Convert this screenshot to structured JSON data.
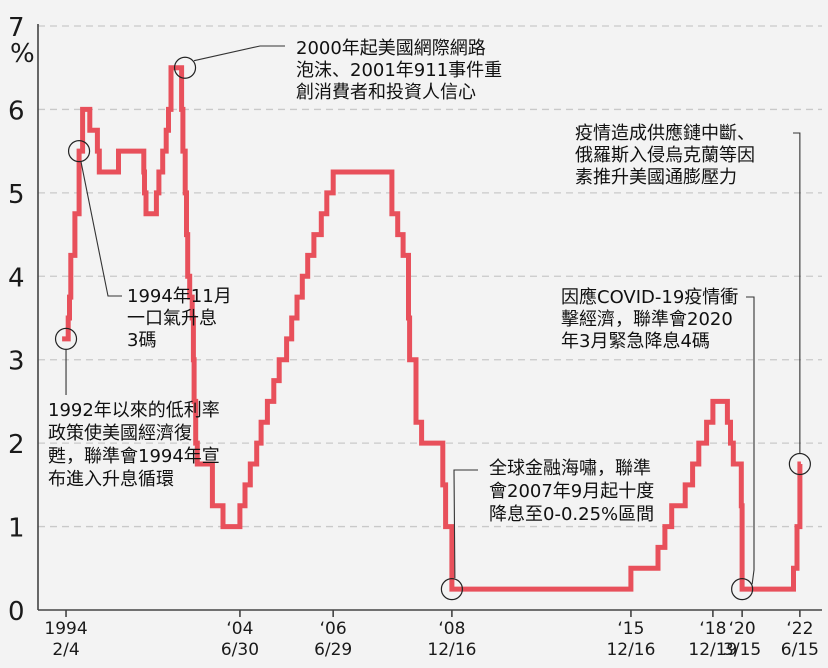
{
  "chart_data": {
    "type": "line",
    "y_unit": "%",
    "ylim": [
      0,
      7
    ],
    "y_ticks": [
      "0",
      "1",
      "2",
      "3",
      "4",
      "5",
      "6",
      "7"
    ],
    "grid": "horizontal dashed",
    "line_color": "#e8505b",
    "x_ticks": [
      {
        "x": "1994-02-04",
        "line1": "1994",
        "line2": "2/4"
      },
      {
        "x": "2004-06-30",
        "line1": "‘04",
        "line2": "6/30"
      },
      {
        "x": "2006-06-29",
        "line1": "‘06",
        "line2": "6/29"
      },
      {
        "x": "2008-12-16",
        "line1": "‘08",
        "line2": "12/16"
      },
      {
        "x": "2015-12-16",
        "line1": "‘15",
        "line2": "12/16"
      },
      {
        "x": "2018-12-19",
        "line1": "‘18",
        "line2": "12/19"
      },
      {
        "x": "2020-03-15",
        "line1": "‘20",
        "line2": "3/15"
      },
      {
        "x": "2022-06-15",
        "line1": "‘22",
        "line2": "6/15"
      }
    ],
    "series": [
      {
        "values": [
          [
            "1993-12-01",
            3.25
          ],
          [
            "1994-02-04",
            3.25
          ],
          [
            "1994-03-22",
            3.5
          ],
          [
            "1994-04-18",
            3.75
          ],
          [
            "1994-05-17",
            4.25
          ],
          [
            "1994-08-16",
            4.75
          ],
          [
            "1994-11-15",
            5.5
          ],
          [
            "1995-02-01",
            6.0
          ],
          [
            "1995-07-06",
            5.75
          ],
          [
            "1995-12-19",
            5.5
          ],
          [
            "1996-01-31",
            5.25
          ],
          [
            "1997-03-25",
            5.5
          ],
          [
            "1998-09-29",
            5.25
          ],
          [
            "1998-10-15",
            5.0
          ],
          [
            "1998-11-17",
            4.75
          ],
          [
            "1999-06-30",
            5.0
          ],
          [
            "1999-08-24",
            5.25
          ],
          [
            "1999-11-16",
            5.5
          ],
          [
            "2000-02-02",
            5.75
          ],
          [
            "2000-03-21",
            6.0
          ],
          [
            "2000-05-16",
            6.5
          ],
          [
            "2001-01-03",
            6.0
          ],
          [
            "2001-01-31",
            5.5
          ],
          [
            "2001-03-20",
            5.0
          ],
          [
            "2001-04-18",
            4.5
          ],
          [
            "2001-05-15",
            4.0
          ],
          [
            "2001-06-27",
            3.75
          ],
          [
            "2001-08-21",
            3.5
          ],
          [
            "2001-09-17",
            3.0
          ],
          [
            "2001-10-02",
            2.5
          ],
          [
            "2001-11-06",
            2.0
          ],
          [
            "2001-12-11",
            1.75
          ],
          [
            "2002-11-06",
            1.25
          ],
          [
            "2003-06-25",
            1.0
          ],
          [
            "2004-06-30",
            1.25
          ],
          [
            "2004-08-10",
            1.5
          ],
          [
            "2004-09-21",
            1.75
          ],
          [
            "2004-11-10",
            2.0
          ],
          [
            "2004-12-14",
            2.25
          ],
          [
            "2005-02-02",
            2.5
          ],
          [
            "2005-03-22",
            2.75
          ],
          [
            "2005-05-03",
            3.0
          ],
          [
            "2005-06-30",
            3.25
          ],
          [
            "2005-08-09",
            3.5
          ],
          [
            "2005-09-20",
            3.75
          ],
          [
            "2005-11-01",
            4.0
          ],
          [
            "2005-12-13",
            4.25
          ],
          [
            "2006-01-31",
            4.5
          ],
          [
            "2006-03-28",
            4.75
          ],
          [
            "2006-05-10",
            5.0
          ],
          [
            "2006-06-29",
            5.25
          ],
          [
            "2007-09-18",
            4.75
          ],
          [
            "2007-10-31",
            4.5
          ],
          [
            "2007-12-11",
            4.25
          ],
          [
            "2008-01-22",
            3.5
          ],
          [
            "2008-01-30",
            3.0
          ],
          [
            "2008-03-18",
            2.25
          ],
          [
            "2008-04-30",
            2.0
          ],
          [
            "2008-10-08",
            1.5
          ],
          [
            "2008-10-29",
            1.0
          ],
          [
            "2008-12-16",
            0.25
          ],
          [
            "2015-12-16",
            0.5
          ],
          [
            "2016-12-14",
            0.75
          ],
          [
            "2017-03-15",
            1.0
          ],
          [
            "2017-06-14",
            1.25
          ],
          [
            "2017-12-13",
            1.5
          ],
          [
            "2018-03-21",
            1.75
          ],
          [
            "2018-06-13",
            2.0
          ],
          [
            "2018-09-26",
            2.25
          ],
          [
            "2018-12-19",
            2.5
          ],
          [
            "2019-07-31",
            2.25
          ],
          [
            "2019-09-18",
            2.0
          ],
          [
            "2019-10-30",
            1.75
          ],
          [
            "2020-03-03",
            1.25
          ],
          [
            "2020-03-15",
            0.25
          ],
          [
            "2022-03-16",
            0.5
          ],
          [
            "2022-05-04",
            1.0
          ],
          [
            "2022-06-15",
            1.75
          ]
        ]
      }
    ],
    "annotations": [
      {
        "key": "a1992",
        "lines": [
          "1992年以來的低利率",
          "政策使美國經濟復",
          "甦，聯準會1994年宣",
          "布進入升息循環"
        ]
      },
      {
        "key": "a1994",
        "lines": [
          "1994年11月",
          "一口氣升息",
          "3碼"
        ]
      },
      {
        "key": "a2000",
        "lines": [
          "2000年起美國網際網路",
          "泡沫、2001年911事件重",
          "創消費者和投資人信心"
        ]
      },
      {
        "key": "a2008",
        "lines": [
          "全球金融海嘯，聯準",
          "會2007年9月起十度",
          "降息至0-0.25%區間"
        ]
      },
      {
        "key": "a2020",
        "lines": [
          "因應COVID-19疫情衝",
          "擊經濟，聯準會2020",
          "年3月緊急降息4碼"
        ]
      },
      {
        "key": "a2022",
        "lines": [
          "疫情造成供應鏈中斷、",
          "俄羅斯入侵烏克蘭等因",
          "素推升美國通膨壓力"
        ]
      }
    ]
  }
}
